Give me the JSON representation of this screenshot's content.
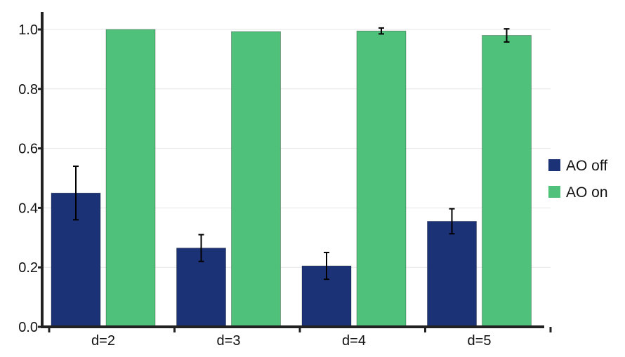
{
  "chart_data": {
    "type": "bar",
    "categories": [
      "d=2",
      "d=3",
      "d=4",
      "d=5"
    ],
    "series": [
      {
        "name": "AO off",
        "color": "#1b3276",
        "values": [
          0.45,
          0.265,
          0.205,
          0.355
        ],
        "errors": [
          0.09,
          0.045,
          0.045,
          0.042
        ]
      },
      {
        "name": "AO on",
        "color": "#4fc17a",
        "values": [
          1.0,
          0.993,
          0.995,
          0.98
        ],
        "errors": [
          0.0,
          0.0,
          0.01,
          0.022
        ]
      }
    ],
    "ylim": [
      0,
      1.0
    ],
    "yticks": [
      "0.0",
      "0.2",
      "0.4",
      "0.6",
      "0.8",
      "1.0"
    ],
    "grid": true,
    "legend_position": "right"
  }
}
